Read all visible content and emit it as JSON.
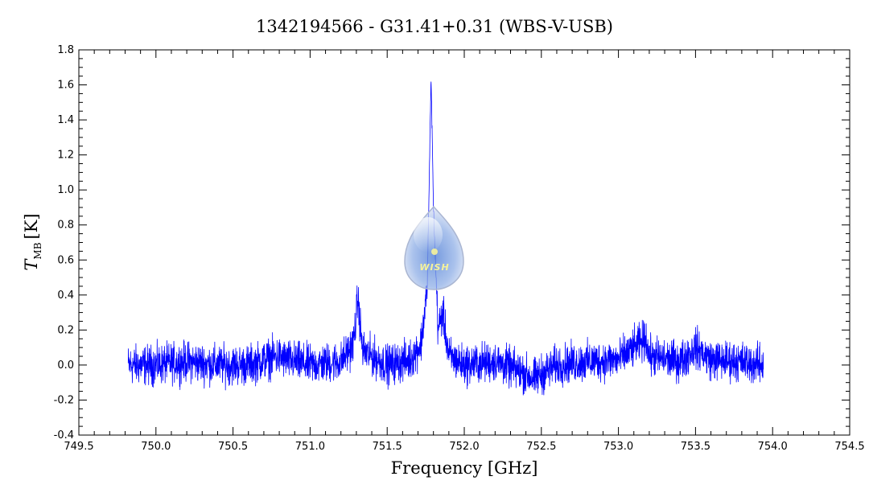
{
  "chart_data": {
    "type": "line",
    "title": "1342194566 - G31.41+0.31 (WBS-V-USB)",
    "xlabel": "Frequency [GHz]",
    "ylabel_main": "T",
    "ylabel_sub": "MB",
    "ylabel_unit": "[K]",
    "xlim": [
      749.5,
      754.5
    ],
    "ylim": [
      -0.4,
      1.8
    ],
    "xticks": [
      "749.5",
      "750.0",
      "750.5",
      "751.0",
      "751.5",
      "752.0",
      "752.5",
      "753.0",
      "753.5",
      "754.0",
      "754.5"
    ],
    "yticks": [
      "-0.4",
      "-0.2",
      "0.0",
      "0.2",
      "0.4",
      "0.6",
      "0.8",
      "1.0",
      "1.2",
      "1.4",
      "1.6",
      "1.8"
    ],
    "grid": false,
    "series": [
      {
        "color": "#0000ff",
        "x": [
          749.82,
          750.0,
          750.2,
          750.4,
          750.6,
          750.78,
          750.85,
          751.0,
          751.2,
          751.28,
          751.31,
          751.34,
          751.5,
          751.65,
          751.72,
          751.76,
          751.785,
          751.8,
          751.815,
          751.83,
          751.86,
          751.9,
          752.0,
          752.2,
          752.4,
          752.45,
          752.6,
          752.8,
          753.0,
          753.18,
          753.2,
          753.4,
          753.5,
          753.6,
          753.8,
          753.94
        ],
        "y": [
          0.0,
          0.0,
          0.02,
          0.0,
          0.0,
          0.05,
          0.03,
          0.0,
          0.02,
          0.12,
          0.38,
          0.08,
          0.0,
          0.03,
          0.12,
          0.45,
          1.65,
          0.9,
          0.55,
          0.2,
          0.3,
          0.05,
          0.0,
          0.02,
          -0.05,
          -0.08,
          0.0,
          0.02,
          0.03,
          0.15,
          0.05,
          0.02,
          0.1,
          0.03,
          0.02,
          0.0
        ]
      }
    ]
  },
  "watermark": {
    "label": "WISH"
  }
}
